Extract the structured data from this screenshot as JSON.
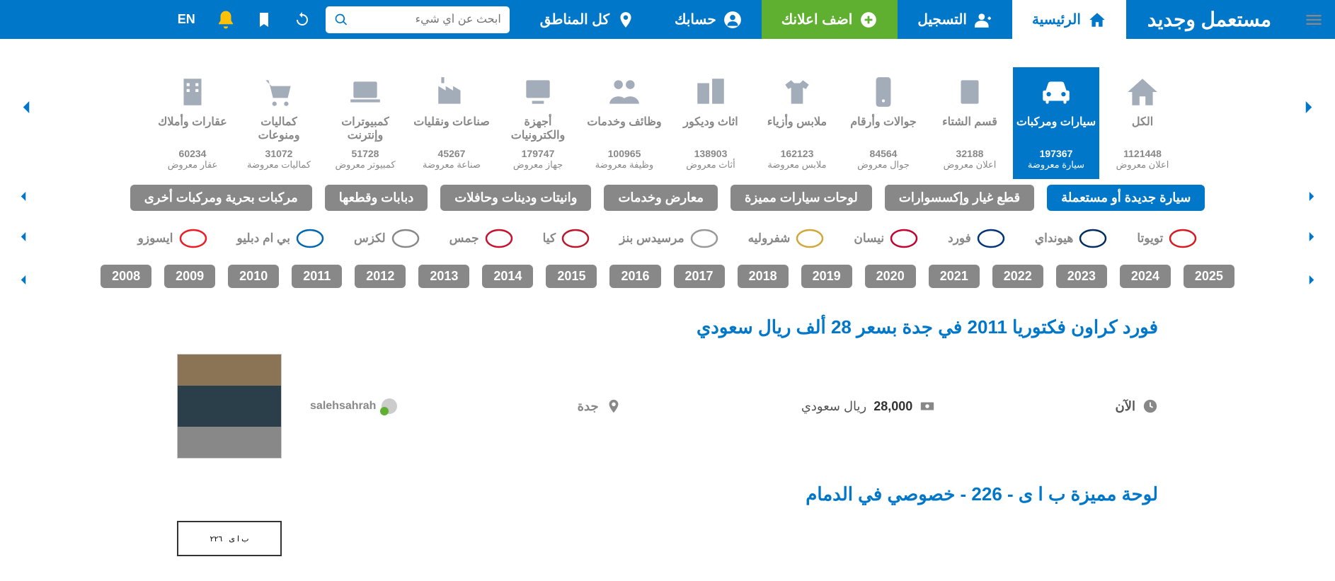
{
  "topbar": {
    "logo": "مستعمل وجديد",
    "home": "الرئيسية",
    "register": "التسجيل",
    "add_ads": "اضف اعلانك",
    "account": "حسابك",
    "regions": "كل المناطق",
    "search_placeholder": "ابحث عن أي شيء",
    "lang": "EN"
  },
  "categories": [
    {
      "title": "الكل",
      "count": "1121448",
      "sub": "اعلان معروض",
      "icon": "home"
    },
    {
      "title": "سيارات ومركبات",
      "count": "197367",
      "sub": "سيارة معروضة",
      "icon": "car",
      "active": true
    },
    {
      "title": "قسم الشتاء",
      "count": "32188",
      "sub": "اعلان معروض",
      "icon": "winter"
    },
    {
      "title": "جوالات وأرقام",
      "count": "84564",
      "sub": "جوال معروض",
      "icon": "phone"
    },
    {
      "title": "ملابس وأزياء",
      "count": "162123",
      "sub": "ملابس معروضة",
      "icon": "clothes"
    },
    {
      "title": "اثاث وديكور",
      "count": "138903",
      "sub": "أثاث معروض",
      "icon": "furniture"
    },
    {
      "title": "وظائف وخدمات",
      "count": "100965",
      "sub": "وظيفة معروضة",
      "icon": "jobs"
    },
    {
      "title": "أجهزة والكترونيات",
      "count": "179747",
      "sub": "جهاز معروض",
      "icon": "electronics"
    },
    {
      "title": "صناعات ونقليات",
      "count": "45267",
      "sub": "صناعة معروضة",
      "icon": "industry"
    },
    {
      "title": "كمبيوترات وإنترنت",
      "count": "51728",
      "sub": "كمبيوتر معروض",
      "icon": "laptop"
    },
    {
      "title": "كماليات ومنوعات",
      "count": "31072",
      "sub": "كماليات معروضة",
      "icon": "cart"
    },
    {
      "title": "عقارات وأملاك",
      "count": "60234",
      "sub": "عقار معروض",
      "icon": "building"
    }
  ],
  "subcats": [
    {
      "label": "سيارة جديدة أو مستعملة",
      "active": true
    },
    {
      "label": "قطع غيار وإكسسوارات"
    },
    {
      "label": "لوحات سيارات مميزة"
    },
    {
      "label": "معارض وخدمات"
    },
    {
      "label": "وانيتات ودينات وحافلات"
    },
    {
      "label": "دبابات وقطعها"
    },
    {
      "label": "مركبات بحرية ومركبات أخرى"
    }
  ],
  "brands": [
    {
      "name": "تويوتا",
      "logo_color": "#d71921"
    },
    {
      "name": "هيونداي",
      "logo_color": "#002c5f"
    },
    {
      "name": "فورد",
      "logo_color": "#003478"
    },
    {
      "name": "نيسان",
      "logo_color": "#c3002f"
    },
    {
      "name": "شفروليه",
      "logo_color": "#d1a738"
    },
    {
      "name": "مرسيدس بنز",
      "logo_color": "#999"
    },
    {
      "name": "كيا",
      "logo_color": "#bb162b"
    },
    {
      "name": "جمس",
      "logo_color": "#c8102e"
    },
    {
      "name": "لكزس",
      "logo_color": "#888"
    },
    {
      "name": "بي ام دبليو",
      "logo_color": "#0066b1"
    },
    {
      "name": "ايسوزو",
      "logo_color": "#ed1c24"
    }
  ],
  "years": [
    "2025",
    "2024",
    "2023",
    "2022",
    "2021",
    "2020",
    "2019",
    "2018",
    "2017",
    "2016",
    "2015",
    "2014",
    "2013",
    "2012",
    "2011",
    "2010",
    "2009",
    "2008"
  ],
  "listings": [
    {
      "title": "فورد كراون فكتوريا 2011 في جدة بسعر 28 ألف ريال سعودي",
      "time": "الآن",
      "price_val": "28,000",
      "price_cur": "ريال سعودي",
      "location": "جدة",
      "user": "salehsahrah",
      "thumb": "car"
    },
    {
      "title": "لوحة مميزة ب ا ى - 226 - خصوصي في الدمام",
      "thumb": "plate"
    }
  ]
}
